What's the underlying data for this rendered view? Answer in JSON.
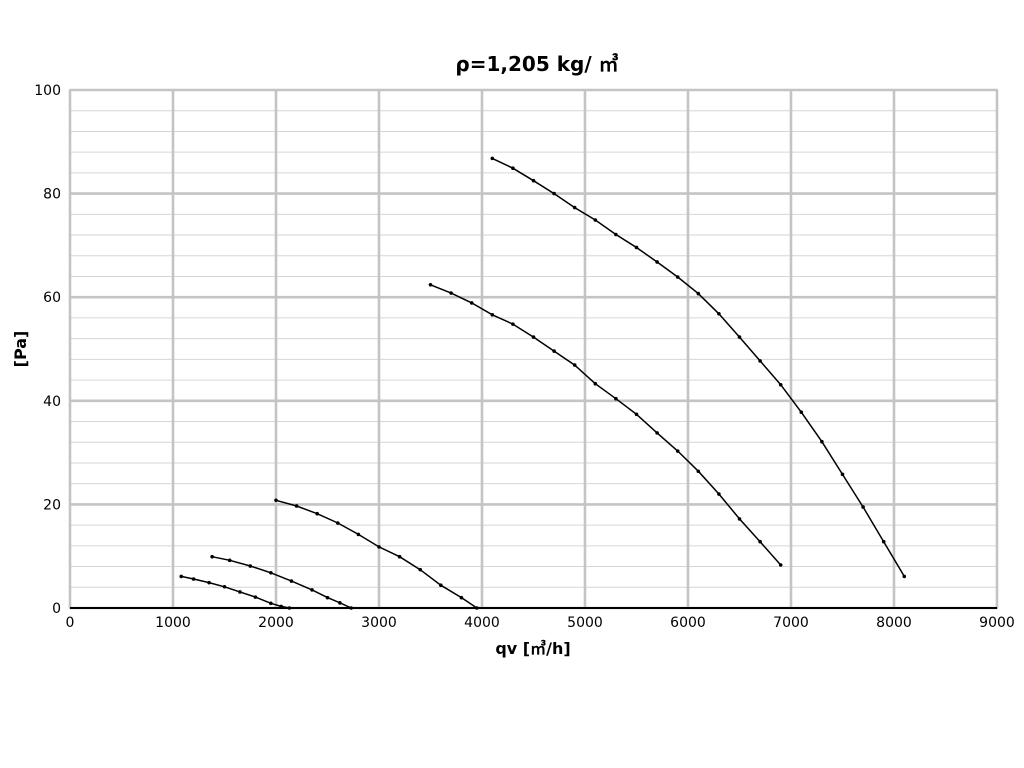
{
  "chart_data": {
    "type": "line",
    "title": "ρ=1,205 kg/ ㎥",
    "xlabel": "qv [㎥/h]",
    "ylabel": "[Pa]",
    "xlim": [
      0,
      9000
    ],
    "ylim": [
      0,
      100
    ],
    "x_ticks": [
      "0",
      "1000",
      "2000",
      "3000",
      "4000",
      "5000",
      "6000",
      "7000",
      "8000",
      "9000"
    ],
    "y_ticks": [
      "0",
      "20",
      "40",
      "60",
      "80",
      "100"
    ],
    "y_minor_step": 4,
    "grid": true,
    "legend": "none",
    "colors": {
      "line": "#000000",
      "major_grid": "#c4c4c4",
      "minor_grid": "#d6d6d6",
      "zero_line": "#000000"
    },
    "series": [
      {
        "x": [
          1080,
          1200,
          1350,
          1500,
          1650,
          1800,
          1950,
          2050,
          2130
        ],
        "y": [
          6.1,
          5.6,
          4.9,
          4.1,
          3.1,
          2.1,
          0.9,
          0.3,
          0
        ]
      },
      {
        "x": [
          1380,
          1550,
          1750,
          1950,
          2150,
          2350,
          2500,
          2620,
          2730
        ],
        "y": [
          9.9,
          9.2,
          8.1,
          6.8,
          5.2,
          3.5,
          2.0,
          1.0,
          0
        ]
      },
      {
        "x": [
          2000,
          2200,
          2400,
          2600,
          2800,
          3000,
          3200,
          3400,
          3600,
          3800,
          3950
        ],
        "y": [
          20.8,
          19.7,
          18.2,
          16.4,
          14.2,
          11.8,
          9.9,
          7.4,
          4.4,
          2.0,
          0
        ]
      },
      {
        "x": [
          3500,
          3700,
          3900,
          4100,
          4300,
          4500,
          4700,
          4900,
          5100,
          5300,
          5500,
          5700,
          5900,
          6100,
          6300,
          6500,
          6700,
          6900
        ],
        "y": [
          62.4,
          60.8,
          58.9,
          56.6,
          54.8,
          52.3,
          49.6,
          46.9,
          43.3,
          40.4,
          37.4,
          33.8,
          30.3,
          26.4,
          22.0,
          17.2,
          12.8,
          8.3
        ]
      },
      {
        "x": [
          4100,
          4300,
          4500,
          4700,
          4900,
          5100,
          5300,
          5500,
          5700,
          5900,
          6100,
          6300,
          6500,
          6700,
          6900,
          7100,
          7300,
          7500,
          7700,
          7900,
          8100
        ],
        "y": [
          86.8,
          84.9,
          82.5,
          80.0,
          77.3,
          74.9,
          72.1,
          69.6,
          66.8,
          63.9,
          60.7,
          56.8,
          52.3,
          47.7,
          43.1,
          37.8,
          32.1,
          25.8,
          19.5,
          12.8,
          6.1
        ]
      }
    ]
  }
}
